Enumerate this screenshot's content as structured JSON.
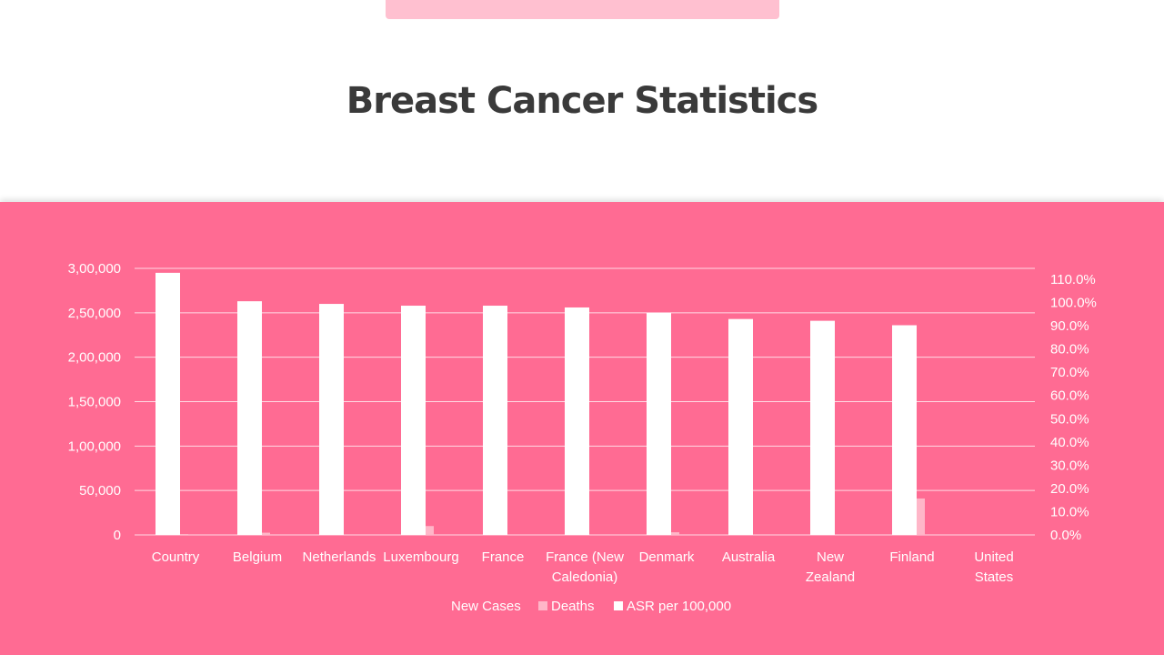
{
  "page": {
    "title": "Breast Cancer Statistics"
  },
  "colors": {
    "panel_bg": "#ff6b93",
    "new_cases": "#ffffff",
    "deaths": "#ffb6c8",
    "asr": "#ffffff",
    "top_tab": "#ffc0d0"
  },
  "chart_data": {
    "type": "bar",
    "categories": [
      [
        "Country"
      ],
      [
        "Belgium"
      ],
      [
        "Netherlands"
      ],
      [
        "Luxembourg"
      ],
      [
        "France"
      ],
      [
        "France (New",
        "Caledonia)"
      ],
      [
        "Denmark"
      ],
      [
        "Australia"
      ],
      [
        "New",
        "Zealand"
      ],
      [
        "Finland"
      ],
      [
        "United",
        "States"
      ]
    ],
    "series": [
      {
        "name": "New Cases",
        "axis": "left",
        "values": [
          295000,
          263000,
          260000,
          258000,
          258000,
          256000,
          250000,
          243000,
          241000,
          236000,
          0
        ]
      },
      {
        "name": "Deaths",
        "axis": "left",
        "values": [
          1000,
          2500,
          0,
          10000,
          0,
          0,
          3000,
          0,
          0,
          41000,
          0
        ]
      },
      {
        "name": "ASR per 100,000",
        "axis": "right",
        "values": [
          0,
          0,
          0,
          0,
          0,
          0,
          0,
          0,
          0,
          0,
          0
        ]
      }
    ],
    "y_left": {
      "ylim": [
        0,
        300000
      ],
      "ticks": [
        0,
        50000,
        100000,
        150000,
        200000,
        250000,
        300000
      ],
      "tick_labels": [
        "0",
        "50,000",
        "1,00,000",
        "1,50,000",
        "2,00,000",
        "2,50,000",
        "3,00,000"
      ]
    },
    "y_right": {
      "ylim": [
        0,
        1.1
      ],
      "ticks": [
        0,
        0.1,
        0.2,
        0.3,
        0.4,
        0.5,
        0.6,
        0.7,
        0.8,
        0.9,
        1.0,
        1.1
      ],
      "tick_labels": [
        "0.0%",
        "10.0%",
        "20.0%",
        "30.0%",
        "40.0%",
        "50.0%",
        "60.0%",
        "70.0%",
        "80.0%",
        "90.0%",
        "100.0%",
        "110.0%"
      ]
    },
    "grid": true,
    "legend_position": "bottom"
  }
}
